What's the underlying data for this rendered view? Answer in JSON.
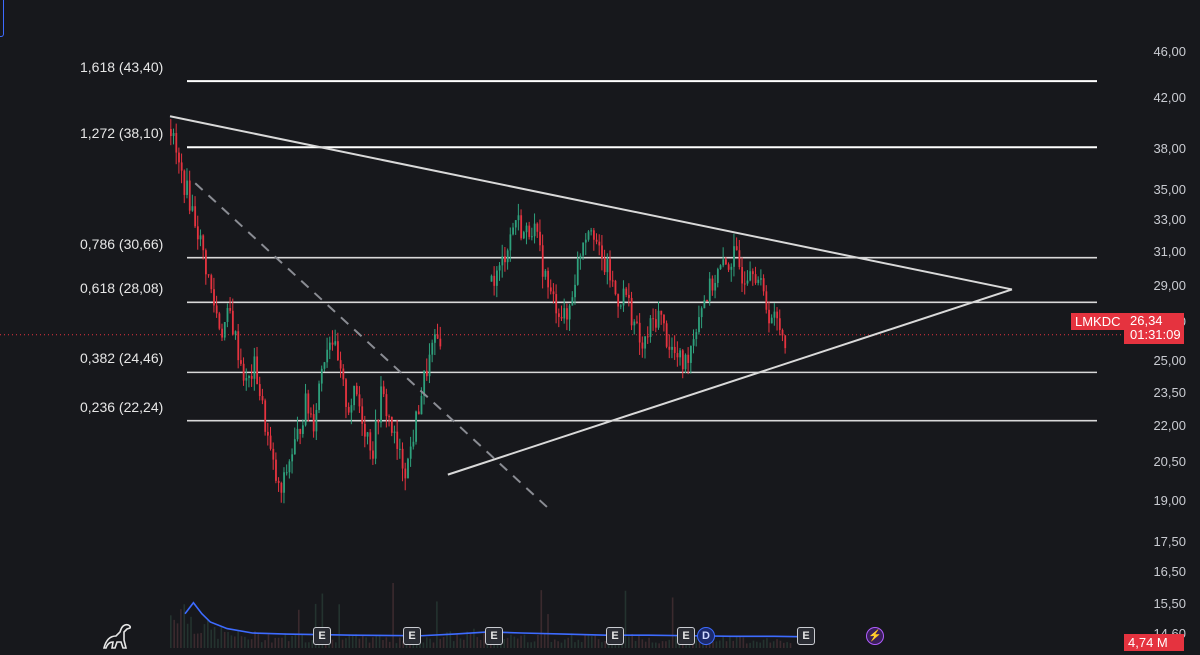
{
  "chart_data": {
    "type": "candlestick",
    "symbol": "LMKDC",
    "last_price": "26,34",
    "countdown": "01:31:09",
    "volume_label": "4,74 M",
    "y_tick_labels": [
      "46,00",
      "42,00",
      "38,00",
      "35,00",
      "33,00",
      "31,00",
      "29,00",
      "27,00",
      "25,00",
      "23,50",
      "22,00",
      "20,50",
      "19,00",
      "17,50",
      "16,50",
      "15,50",
      "14,60"
    ],
    "y_tick_values": [
      46,
      42,
      38,
      35,
      33,
      31,
      29,
      27,
      25,
      23.5,
      22,
      20.5,
      19,
      17.5,
      16.5,
      15.5,
      14.6
    ],
    "ylim": [
      14.3,
      48
    ],
    "fib_levels": [
      {
        "label": "1,618 (43,40)",
        "value": 43.4
      },
      {
        "label": "1,272 (38,10)",
        "value": 38.1
      },
      {
        "label": "0,786 (30,66)",
        "value": 30.66
      },
      {
        "label": "0,618 (28,08)",
        "value": 28.08
      },
      {
        "label": "0,382 (24,46)",
        "value": 24.46
      },
      {
        "label": "0,236 (22,24)",
        "value": 22.24
      }
    ],
    "triangle": {
      "upper": [
        [
          0.0,
          40.5
        ],
        [
          1.0,
          28.8
        ]
      ],
      "lower": [
        [
          0.33,
          20.0
        ],
        [
          1.0,
          28.8
        ]
      ]
    },
    "dashed_trend": [
      [
        0.03,
        35.5
      ],
      [
        0.45,
        18.7
      ]
    ],
    "price_path": [
      [
        0.0,
        39.5
      ],
      [
        0.01,
        36.5
      ],
      [
        0.02,
        34.8
      ],
      [
        0.03,
        32.8
      ],
      [
        0.04,
        30.5
      ],
      [
        0.05,
        28.2
      ],
      [
        0.06,
        26.5
      ],
      [
        0.07,
        27.5
      ],
      [
        0.08,
        25.5
      ],
      [
        0.09,
        23.8
      ],
      [
        0.1,
        24.8
      ],
      [
        0.11,
        22.5
      ],
      [
        0.12,
        20.5
      ],
      [
        0.13,
        19.1
      ],
      [
        0.14,
        20.5
      ],
      [
        0.15,
        21.5
      ],
      [
        0.16,
        23.0
      ],
      [
        0.17,
        22.2
      ],
      [
        0.18,
        25.0
      ],
      [
        0.19,
        26.5
      ],
      [
        0.2,
        24.5
      ],
      [
        0.21,
        22.8
      ],
      [
        0.22,
        23.5
      ],
      [
        0.23,
        22.0
      ],
      [
        0.24,
        21.0
      ],
      [
        0.25,
        23.5
      ],
      [
        0.26,
        22.2
      ],
      [
        0.27,
        20.8
      ],
      [
        0.28,
        20.2
      ],
      [
        0.29,
        22.0
      ],
      [
        0.3,
        24.0
      ],
      [
        0.31,
        25.5
      ],
      [
        0.32,
        26.3
      ],
      [
        0.38,
        29.2
      ],
      [
        0.39,
        29.8
      ],
      [
        0.4,
        31.5
      ],
      [
        0.41,
        33.2
      ],
      [
        0.42,
        32.0
      ],
      [
        0.43,
        32.8
      ],
      [
        0.44,
        30.5
      ],
      [
        0.45,
        28.5
      ],
      [
        0.46,
        27.8
      ],
      [
        0.47,
        27.0
      ],
      [
        0.48,
        29.5
      ],
      [
        0.49,
        32.0
      ],
      [
        0.5,
        33.0
      ],
      [
        0.51,
        30.5
      ],
      [
        0.52,
        29.8
      ],
      [
        0.53,
        28.2
      ],
      [
        0.54,
        28.6
      ],
      [
        0.55,
        27.0
      ],
      [
        0.56,
        25.5
      ],
      [
        0.57,
        26.8
      ],
      [
        0.58,
        27.5
      ],
      [
        0.59,
        26.0
      ],
      [
        0.6,
        25.2
      ],
      [
        0.61,
        24.8
      ],
      [
        0.62,
        26.2
      ],
      [
        0.63,
        28.0
      ],
      [
        0.64,
        28.8
      ],
      [
        0.65,
        29.8
      ],
      [
        0.66,
        30.2
      ],
      [
        0.67,
        30.8
      ],
      [
        0.68,
        29.5
      ],
      [
        0.69,
        30.5
      ],
      [
        0.7,
        29.0
      ],
      [
        0.71,
        27.5
      ],
      [
        0.72,
        27.0
      ],
      [
        0.73,
        26.2
      ]
    ],
    "volume_path": [
      [
        0.0,
        0.55
      ],
      [
        0.01,
        0.75
      ],
      [
        0.02,
        0.55
      ],
      [
        0.03,
        0.4
      ],
      [
        0.05,
        0.28
      ],
      [
        0.08,
        0.2
      ],
      [
        0.12,
        0.18
      ],
      [
        0.2,
        0.16
      ],
      [
        0.28,
        0.15
      ],
      [
        0.32,
        0.18
      ],
      [
        0.36,
        0.22
      ],
      [
        0.4,
        0.2
      ],
      [
        0.45,
        0.18
      ],
      [
        0.5,
        0.16
      ],
      [
        0.55,
        0.16
      ],
      [
        0.6,
        0.15
      ],
      [
        0.65,
        0.14
      ],
      [
        0.7,
        0.14
      ],
      [
        0.74,
        0.13
      ]
    ],
    "events": [
      "E",
      "E",
      "E",
      "E",
      "E",
      "D",
      "E",
      "⚡"
    ]
  }
}
